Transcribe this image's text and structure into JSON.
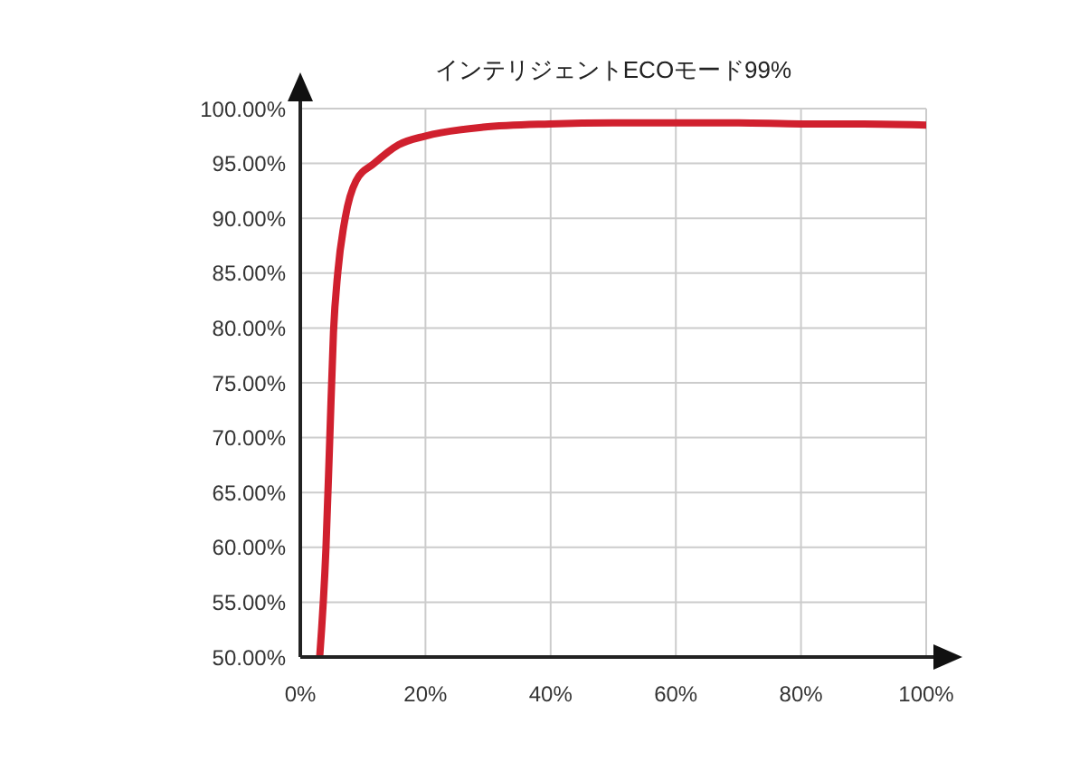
{
  "chart_data": {
    "type": "line",
    "title": "インテリジェントECOモード99%",
    "x": [
      3.1,
      4.1,
      4.7,
      5.3,
      6.0,
      7.2,
      8.9,
      11.8,
      15.7,
      20,
      29.2,
      39.8,
      50,
      60,
      70,
      80,
      90,
      100
    ],
    "series": [
      {
        "color": "#d0202e",
        "values": [
          50,
          59.9,
          69.7,
          79.6,
          85.1,
          90.1,
          93.4,
          95.0,
          96.7,
          97.5,
          98.3,
          98.6,
          98.7,
          98.7,
          98.7,
          98.6,
          98.6,
          98.5
        ]
      }
    ],
    "xlim": [
      0,
      100
    ],
    "xticks": [
      {
        "value": 0,
        "label": "0%"
      },
      {
        "value": 20,
        "label": "20%"
      },
      {
        "value": 40,
        "label": "40%"
      },
      {
        "value": 60,
        "label": "60%"
      },
      {
        "value": 80,
        "label": "80%"
      },
      {
        "value": 100,
        "label": "100%"
      }
    ],
    "ylim": [
      50,
      100
    ],
    "yticks": [
      {
        "value": 50,
        "label": "50.00%"
      },
      {
        "value": 55,
        "label": "55.00%"
      },
      {
        "value": 60,
        "label": "60.00%"
      },
      {
        "value": 65,
        "label": "65.00%"
      },
      {
        "value": 70,
        "label": "70.00%"
      },
      {
        "value": 75,
        "label": "75.00%"
      },
      {
        "value": 80,
        "label": "80.00%"
      },
      {
        "value": 85,
        "label": "85.00%"
      },
      {
        "value": 90,
        "label": "90.00%"
      },
      {
        "value": 95,
        "label": "95.00%"
      },
      {
        "value": 100,
        "label": "100.00%"
      }
    ],
    "grid": true,
    "legend": false,
    "marker": "none",
    "line_style": "solid"
  }
}
